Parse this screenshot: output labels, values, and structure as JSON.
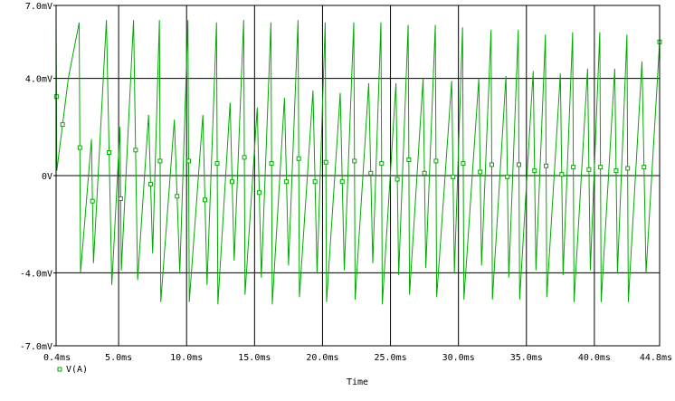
{
  "chart_data": {
    "type": "line",
    "xlabel": "Time",
    "ylabel": "",
    "xlim": [
      0.4,
      44.8
    ],
    "ylim": [
      -7.0,
      7.0
    ],
    "x_unit": "ms",
    "y_unit": "mV",
    "grid": true,
    "legend_position": "bottom-left",
    "x_ticks": [
      0.4,
      5.0,
      10.0,
      15.0,
      20.0,
      25.0,
      30.0,
      35.0,
      40.0,
      44.8
    ],
    "x_tick_labels": [
      "0.4ms",
      "5.0ms",
      "10.0ms",
      "15.0ms",
      "20.0ms",
      "25.0ms",
      "30.0ms",
      "35.0ms",
      "40.0ms",
      "44.8ms"
    ],
    "y_ticks": [
      7.0,
      4.0,
      0,
      -4.0,
      -7.0
    ],
    "y_tick_labels": [
      "7.0mV",
      "4.0mV",
      "0V",
      "-4.0mV",
      "-7.0mV"
    ],
    "series": [
      {
        "name": "V(A)",
        "color": "#00aa00",
        "marker": "square",
        "x": [
          0.4,
          0.45,
          1.3,
          2.1,
          2.2,
          3.0,
          3.15,
          4.1,
          4.5,
          5.1,
          5.2,
          6.1,
          6.4,
          7.2,
          7.5,
          8.0,
          8.1,
          9.1,
          9.5,
          10.1,
          10.2,
          11.2,
          11.5,
          12.2,
          12.3,
          13.2,
          13.5,
          14.2,
          14.3,
          15.2,
          15.5,
          16.2,
          16.3,
          17.2,
          17.5,
          18.2,
          18.3,
          19.3,
          19.6,
          20.2,
          20.3,
          21.3,
          21.6,
          22.3,
          22.4,
          23.4,
          23.7,
          24.3,
          24.4,
          25.4,
          25.6,
          26.3,
          26.4,
          27.4,
          27.6,
          28.3,
          28.4,
          29.5,
          29.7,
          30.3,
          30.4,
          31.5,
          31.7,
          32.4,
          32.5,
          33.5,
          33.7,
          34.4,
          34.5,
          35.5,
          35.7,
          36.4,
          36.5,
          37.5,
          37.7,
          38.4,
          38.5,
          39.5,
          39.7,
          40.4,
          40.5,
          41.5,
          41.7,
          42.4,
          42.5,
          43.5,
          43.8,
          44.8
        ],
        "y": [
          6.3,
          0.2,
          4.0,
          6.3,
          -4.0,
          1.5,
          -3.6,
          6.4,
          -4.5,
          2.0,
          -3.9,
          6.4,
          -4.3,
          2.5,
          -3.2,
          6.4,
          -5.2,
          2.3,
          -4.0,
          6.4,
          -5.2,
          2.5,
          -4.5,
          6.3,
          -5.3,
          3.0,
          -3.5,
          6.4,
          -4.9,
          2.8,
          -4.2,
          6.3,
          -5.3,
          3.2,
          -3.7,
          6.4,
          -5.0,
          3.5,
          -4.0,
          6.3,
          -5.2,
          3.4,
          -3.9,
          6.3,
          -5.1,
          3.8,
          -3.6,
          6.3,
          -5.3,
          3.8,
          -4.1,
          6.2,
          -4.9,
          4.0,
          -3.8,
          6.2,
          -5.0,
          3.9,
          -4.0,
          6.1,
          -5.1,
          4.0,
          -3.7,
          6.0,
          -5.1,
          4.1,
          -4.2,
          6.0,
          -5.1,
          4.3,
          -3.9,
          5.8,
          -5.0,
          4.2,
          -4.1,
          5.9,
          -5.2,
          4.4,
          -3.9,
          5.9,
          -5.2,
          4.4,
          -4.0,
          5.8,
          -5.2,
          4.7,
          -4.0,
          5.5
        ]
      }
    ]
  }
}
